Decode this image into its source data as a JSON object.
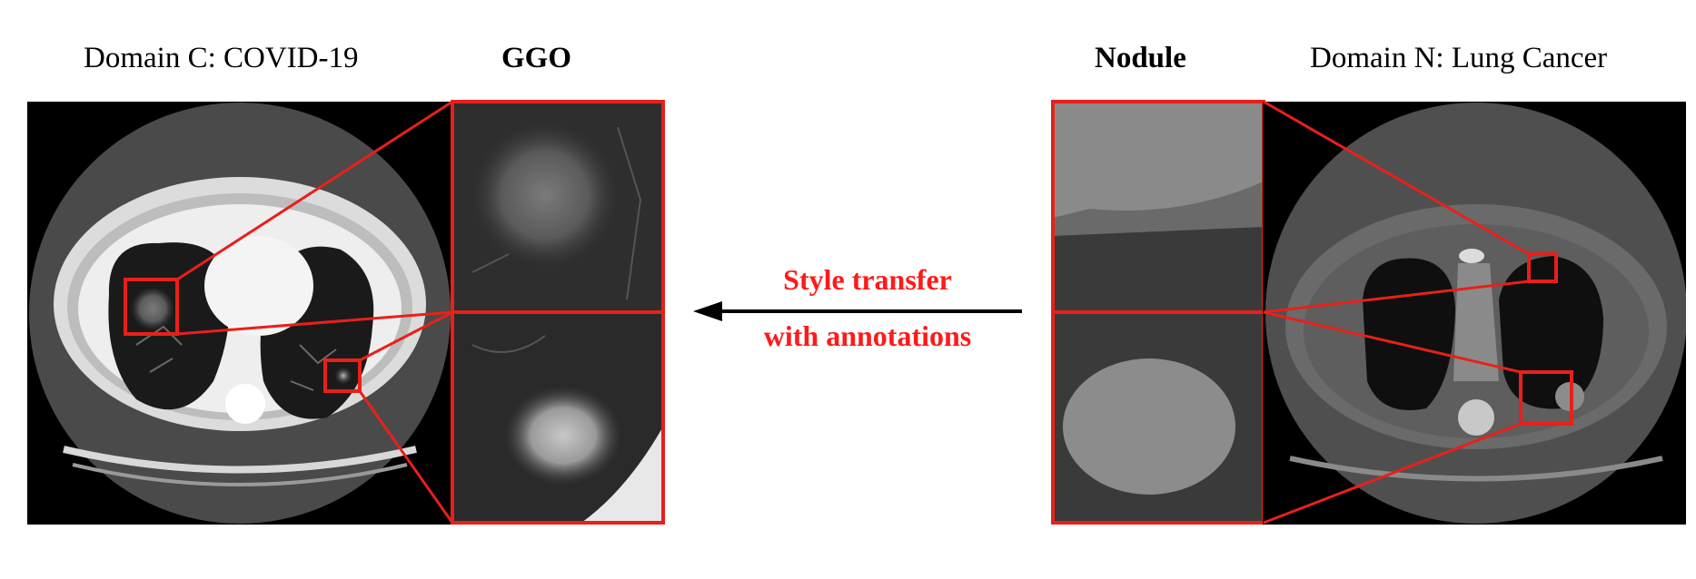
{
  "labels": {
    "domain_c": "Domain C: COVID-19",
    "ggo": "GGO",
    "nodule": "Nodule",
    "domain_n": "Domain N: Lung Cancer"
  },
  "arrow": {
    "line1": "Style transfer",
    "line2": "with annotations",
    "color": "#ff1a1a"
  },
  "colors": {
    "annotation_box": "#e8201a",
    "background": "#ffffff",
    "ct_background": "#000000"
  }
}
